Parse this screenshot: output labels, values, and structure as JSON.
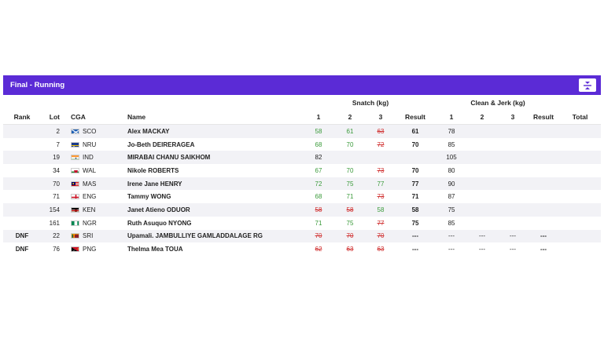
{
  "panel": {
    "title": "Final - Running"
  },
  "headers": {
    "snatch_group": "Snatch (kg)",
    "cj_group": "Clean & Jerk (kg)",
    "rank": "Rank",
    "lot": "Lot",
    "cga": "CGA",
    "name": "Name",
    "a1": "1",
    "a2": "2",
    "a3": "3",
    "result": "Result",
    "total": "Total"
  },
  "colors": {
    "accent": "#5b2bd6",
    "good": "#3a9a3a",
    "fail": "#d03030"
  },
  "rows": [
    {
      "rank": "",
      "lot": "2",
      "flag": "scotland",
      "cga": "SCO",
      "name": "Alex MACKAY",
      "sn": [
        [
          "58",
          "g"
        ],
        [
          "61",
          "g"
        ],
        [
          "63",
          "f"
        ]
      ],
      "sn_res": "61",
      "cj": [
        [
          "78",
          "n"
        ],
        [
          "",
          ""
        ],
        [
          "",
          ""
        ]
      ],
      "cj_res": "",
      "total": ""
    },
    {
      "rank": "",
      "lot": "7",
      "flag": "nauru",
      "cga": "NRU",
      "name": "Jo-Beth DEIRERAGEA",
      "sn": [
        [
          "68",
          "g"
        ],
        [
          "70",
          "g"
        ],
        [
          "72",
          "f"
        ]
      ],
      "sn_res": "70",
      "cj": [
        [
          "85",
          "n"
        ],
        [
          "",
          ""
        ],
        [
          "",
          ""
        ]
      ],
      "cj_res": "",
      "total": ""
    },
    {
      "rank": "",
      "lot": "19",
      "flag": "india",
      "cga": "IND",
      "name": "MIRABAI CHANU SAIKHOM",
      "sn": [
        [
          "82",
          "n"
        ],
        [
          "",
          ""
        ],
        [
          "",
          ""
        ]
      ],
      "sn_res": "",
      "cj": [
        [
          "105",
          "n"
        ],
        [
          "",
          ""
        ],
        [
          "",
          ""
        ]
      ],
      "cj_res": "",
      "total": ""
    },
    {
      "rank": "",
      "lot": "34",
      "flag": "wales",
      "cga": "WAL",
      "name": "Nikole ROBERTS",
      "sn": [
        [
          "67",
          "g"
        ],
        [
          "70",
          "g"
        ],
        [
          "73",
          "f"
        ]
      ],
      "sn_res": "70",
      "cj": [
        [
          "80",
          "n"
        ],
        [
          "",
          ""
        ],
        [
          "",
          ""
        ]
      ],
      "cj_res": "",
      "total": ""
    },
    {
      "rank": "",
      "lot": "70",
      "flag": "malaysia",
      "cga": "MAS",
      "name": "Irene Jane HENRY",
      "sn": [
        [
          "72",
          "g"
        ],
        [
          "75",
          "g"
        ],
        [
          "77",
          "g"
        ]
      ],
      "sn_res": "77",
      "cj": [
        [
          "90",
          "n"
        ],
        [
          "",
          ""
        ],
        [
          "",
          ""
        ]
      ],
      "cj_res": "",
      "total": ""
    },
    {
      "rank": "",
      "lot": "71",
      "flag": "england",
      "cga": "ENG",
      "name": "Tammy WONG",
      "sn": [
        [
          "68",
          "g"
        ],
        [
          "71",
          "g"
        ],
        [
          "73",
          "f"
        ]
      ],
      "sn_res": "71",
      "cj": [
        [
          "87",
          "n"
        ],
        [
          "",
          ""
        ],
        [
          "",
          ""
        ]
      ],
      "cj_res": "",
      "total": ""
    },
    {
      "rank": "",
      "lot": "154",
      "flag": "kenya",
      "cga": "KEN",
      "name": "Janet Atieno ODUOR",
      "sn": [
        [
          "58",
          "f"
        ],
        [
          "58",
          "f"
        ],
        [
          "58",
          "g"
        ]
      ],
      "sn_res": "58",
      "cj": [
        [
          "75",
          "n"
        ],
        [
          "",
          ""
        ],
        [
          "",
          ""
        ]
      ],
      "cj_res": "",
      "total": ""
    },
    {
      "rank": "",
      "lot": "161",
      "flag": "nigeria",
      "cga": "NGR",
      "name": "Ruth Asuquo NYONG",
      "sn": [
        [
          "71",
          "g"
        ],
        [
          "75",
          "g"
        ],
        [
          "77",
          "f"
        ]
      ],
      "sn_res": "75",
      "cj": [
        [
          "85",
          "n"
        ],
        [
          "",
          ""
        ],
        [
          "",
          ""
        ]
      ],
      "cj_res": "",
      "total": ""
    },
    {
      "rank": "DNF",
      "lot": "22",
      "flag": "srilanka",
      "cga": "SRI",
      "name": "Upamali. JAMBULLIYE GAMLADDALAGE RG",
      "sn": [
        [
          "70",
          "f"
        ],
        [
          "70",
          "f"
        ],
        [
          "70",
          "f"
        ]
      ],
      "sn_res": "---",
      "cj": [
        [
          "---",
          "n"
        ],
        [
          "---",
          "n"
        ],
        [
          "---",
          "n"
        ]
      ],
      "cj_res": "---",
      "total": ""
    },
    {
      "rank": "DNF",
      "lot": "76",
      "flag": "png",
      "cga": "PNG",
      "name": "Thelma Mea TOUA",
      "sn": [
        [
          "62",
          "f"
        ],
        [
          "63",
          "f"
        ],
        [
          "63",
          "f"
        ]
      ],
      "sn_res": "---",
      "cj": [
        [
          "---",
          "n"
        ],
        [
          "---",
          "n"
        ],
        [
          "---",
          "n"
        ]
      ],
      "cj_res": "---",
      "total": ""
    }
  ]
}
